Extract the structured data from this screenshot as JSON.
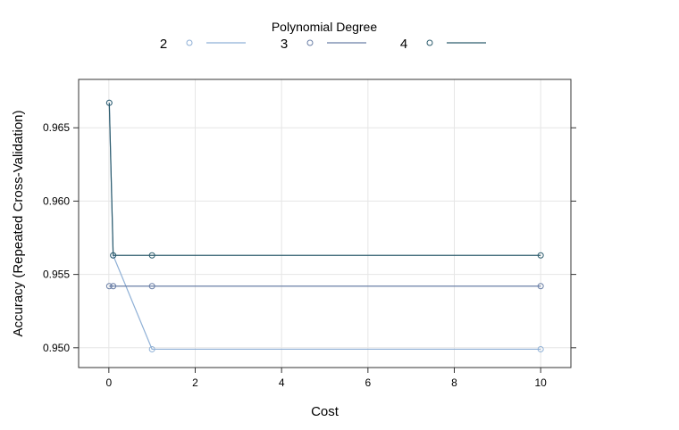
{
  "chart_data": {
    "type": "line",
    "xlabel": "Cost",
    "ylabel": "Accuracy (Repeated Cross-Validation)",
    "legend_title": "Polynomial Degree",
    "legend_position": "top",
    "grid": true,
    "xlim": [
      -0.7,
      10.7
    ],
    "ylim": [
      0.94865,
      0.9683
    ],
    "xticks": [
      0,
      2,
      4,
      6,
      8,
      10
    ],
    "yticks": [
      0.95,
      0.955,
      0.96,
      0.965
    ],
    "xtick_labels": [
      "0",
      "2",
      "4",
      "6",
      "8",
      "10"
    ],
    "ytick_labels": [
      "0.950",
      "0.955",
      "0.960",
      "0.965"
    ],
    "x": [
      0.01,
      0.1,
      1,
      10
    ],
    "series": [
      {
        "name": "2",
        "color": "#8fb0d6",
        "values": [
          0.9667,
          0.9563,
          0.9499,
          0.9499
        ]
      },
      {
        "name": "3",
        "color": "#6a7fa6",
        "values": [
          0.9542,
          0.9542,
          0.9542,
          0.9542
        ]
      },
      {
        "name": "4",
        "color": "#2e5d6e",
        "values": [
          0.9667,
          0.9563,
          0.9563,
          0.9563
        ]
      }
    ]
  }
}
